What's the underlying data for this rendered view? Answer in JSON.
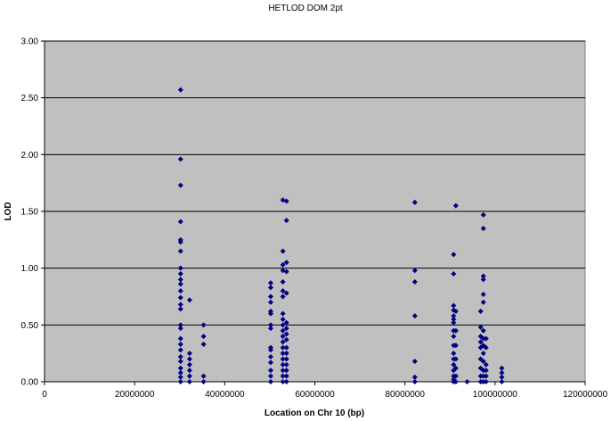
{
  "chart_data": {
    "type": "scatter",
    "title": "HETLOD DOM 2pt",
    "xlabel": "Location on Chr 10 (bp)",
    "ylabel": "LOD",
    "xlim": [
      0,
      120000000
    ],
    "ylim": [
      0,
      3.0
    ],
    "x_ticks": [
      0,
      20000000,
      40000000,
      60000000,
      80000000,
      100000000,
      120000000
    ],
    "x_tick_labels": [
      "0",
      "20000000",
      "40000000",
      "60000000",
      "80000000",
      "100000000",
      "120000000"
    ],
    "y_ticks": [
      0,
      0.5,
      1.0,
      1.5,
      2.0,
      2.5,
      3.0
    ],
    "y_tick_labels": [
      "0.00",
      "0.50",
      "1.00",
      "1.50",
      "2.00",
      "2.50",
      "3.00"
    ],
    "grid": "horizontal",
    "legend": "none",
    "colors": {
      "plot_bg": "#c0c0c0",
      "marker": "#000080",
      "grid": "#000000"
    },
    "marker": "diamond",
    "series": [
      {
        "points": [
          [
            30200000,
            2.57
          ],
          [
            30200000,
            1.96
          ],
          [
            30200000,
            1.73
          ],
          [
            30200000,
            1.41
          ],
          [
            30200000,
            1.25
          ],
          [
            30200000,
            1.23
          ],
          [
            30200000,
            1.15
          ],
          [
            30200000,
            1.0
          ],
          [
            30200000,
            0.95
          ],
          [
            30200000,
            0.9
          ],
          [
            30200000,
            0.86
          ],
          [
            30200000,
            0.8
          ],
          [
            30200000,
            0.74
          ],
          [
            30200000,
            0.68
          ],
          [
            30200000,
            0.64
          ],
          [
            30200000,
            0.5
          ],
          [
            30200000,
            0.47
          ],
          [
            30200000,
            0.38
          ],
          [
            30200000,
            0.33
          ],
          [
            30200000,
            0.28
          ],
          [
            30200000,
            0.22
          ],
          [
            30200000,
            0.18
          ],
          [
            30200000,
            0.12
          ],
          [
            30200000,
            0.08
          ],
          [
            30200000,
            0.04
          ],
          [
            30200000,
            0.0
          ],
          [
            32200000,
            0.72
          ],
          [
            32200000,
            0.25
          ],
          [
            32200000,
            0.2
          ],
          [
            32200000,
            0.15
          ],
          [
            32200000,
            0.1
          ],
          [
            32200000,
            0.05
          ],
          [
            32200000,
            0.0
          ],
          [
            35300000,
            0.5
          ],
          [
            35300000,
            0.4
          ],
          [
            35300000,
            0.33
          ],
          [
            35300000,
            0.05
          ],
          [
            35300000,
            0.0
          ],
          [
            50200000,
            0.87
          ],
          [
            50200000,
            0.83
          ],
          [
            50200000,
            0.75
          ],
          [
            50200000,
            0.7
          ],
          [
            50200000,
            0.62
          ],
          [
            50200000,
            0.6
          ],
          [
            50200000,
            0.5
          ],
          [
            50200000,
            0.47
          ],
          [
            50200000,
            0.3
          ],
          [
            50200000,
            0.28
          ],
          [
            50200000,
            0.22
          ],
          [
            50200000,
            0.17
          ],
          [
            50200000,
            0.1
          ],
          [
            50200000,
            0.05
          ],
          [
            50200000,
            0.0
          ],
          [
            52900000,
            1.6
          ],
          [
            52900000,
            1.15
          ],
          [
            52900000,
            1.03
          ],
          [
            52900000,
            0.98
          ],
          [
            52900000,
            0.88
          ],
          [
            52900000,
            0.8
          ],
          [
            52900000,
            0.75
          ],
          [
            52900000,
            0.6
          ],
          [
            52900000,
            0.55
          ],
          [
            52900000,
            0.5
          ],
          [
            52900000,
            0.45
          ],
          [
            52900000,
            0.4
          ],
          [
            52900000,
            0.35
          ],
          [
            52900000,
            0.3
          ],
          [
            52900000,
            0.25
          ],
          [
            52900000,
            0.2
          ],
          [
            52900000,
            0.15
          ],
          [
            52900000,
            0.1
          ],
          [
            52900000,
            0.05
          ],
          [
            52900000,
            0.0
          ],
          [
            53700000,
            1.59
          ],
          [
            53700000,
            1.42
          ],
          [
            53700000,
            1.05
          ],
          [
            53700000,
            0.97
          ],
          [
            53700000,
            0.78
          ],
          [
            53700000,
            0.52
          ],
          [
            53700000,
            0.47
          ],
          [
            53700000,
            0.42
          ],
          [
            53700000,
            0.37
          ],
          [
            53700000,
            0.3
          ],
          [
            53700000,
            0.25
          ],
          [
            53700000,
            0.2
          ],
          [
            53700000,
            0.15
          ],
          [
            53700000,
            0.1
          ],
          [
            53700000,
            0.05
          ],
          [
            53700000,
            0.0
          ],
          [
            82200000,
            1.58
          ],
          [
            82200000,
            0.98
          ],
          [
            82200000,
            0.88
          ],
          [
            82200000,
            0.58
          ],
          [
            82200000,
            0.18
          ],
          [
            82200000,
            0.04
          ],
          [
            82200000,
            0.0
          ],
          [
            90800000,
            1.12
          ],
          [
            90800000,
            0.95
          ],
          [
            90800000,
            0.67
          ],
          [
            90800000,
            0.63
          ],
          [
            90800000,
            0.58
          ],
          [
            90800000,
            0.55
          ],
          [
            90800000,
            0.52
          ],
          [
            90800000,
            0.45
          ],
          [
            90800000,
            0.4
          ],
          [
            90800000,
            0.32
          ],
          [
            90800000,
            0.25
          ],
          [
            90800000,
            0.2
          ],
          [
            90800000,
            0.15
          ],
          [
            90800000,
            0.1
          ],
          [
            90800000,
            0.05
          ],
          [
            90800000,
            0.02
          ],
          [
            90800000,
            0.0
          ],
          [
            91300000,
            1.55
          ],
          [
            91300000,
            0.62
          ],
          [
            91300000,
            0.45
          ],
          [
            91300000,
            0.32
          ],
          [
            91300000,
            0.2
          ],
          [
            91300000,
            0.12
          ],
          [
            91300000,
            0.05
          ],
          [
            91300000,
            0.0
          ],
          [
            93800000,
            0.0
          ],
          [
            96800000,
            0.62
          ],
          [
            96800000,
            0.48
          ],
          [
            96800000,
            0.4
          ],
          [
            96800000,
            0.35
          ],
          [
            96800000,
            0.3
          ],
          [
            96800000,
            0.2
          ],
          [
            96800000,
            0.12
          ],
          [
            96800000,
            0.05
          ],
          [
            96800000,
            0.0
          ],
          [
            97400000,
            1.47
          ],
          [
            97400000,
            1.35
          ],
          [
            97400000,
            0.93
          ],
          [
            97400000,
            0.9
          ],
          [
            97400000,
            0.77
          ],
          [
            97400000,
            0.7
          ],
          [
            97400000,
            0.45
          ],
          [
            97400000,
            0.38
          ],
          [
            97400000,
            0.32
          ],
          [
            97400000,
            0.25
          ],
          [
            97400000,
            0.18
          ],
          [
            97400000,
            0.1
          ],
          [
            97400000,
            0.05
          ],
          [
            97400000,
            0.0
          ],
          [
            98000000,
            0.38
          ],
          [
            98000000,
            0.3
          ],
          [
            98000000,
            0.15
          ],
          [
            98000000,
            0.1
          ],
          [
            98000000,
            0.05
          ],
          [
            98000000,
            0.0
          ],
          [
            101500000,
            0.12
          ],
          [
            101500000,
            0.08
          ],
          [
            101500000,
            0.04
          ],
          [
            101500000,
            0.0
          ]
        ]
      }
    ]
  }
}
